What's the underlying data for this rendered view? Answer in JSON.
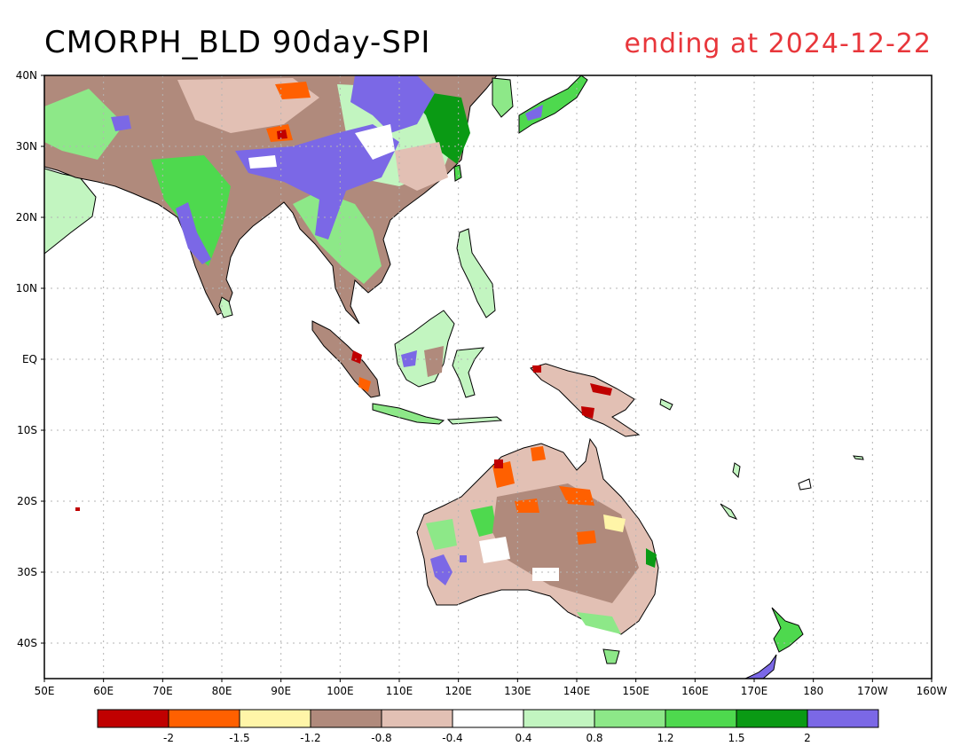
{
  "title": "CMORPH_BLD 90day-SPI",
  "subtitle": "ending at 2024-12-22",
  "map": {
    "lat_labels": [
      "40N",
      "30N",
      "20N",
      "10N",
      "EQ",
      "10S",
      "20S",
      "30S",
      "40S"
    ],
    "lon_labels": [
      "50E",
      "60E",
      "70E",
      "80E",
      "90E",
      "100E",
      "110E",
      "120E",
      "130E",
      "140E",
      "150E",
      "160E",
      "170E",
      "180",
      "170W",
      "160W"
    ]
  },
  "legend": {
    "colors": [
      "#c00000",
      "#ff6000",
      "#fff5a8",
      "#b08a7c",
      "#e2c0b4",
      "#ffffff",
      "#c2f5c0",
      "#8de888",
      "#4ed94e",
      "#0a9a14",
      "#7b68e6"
    ],
    "labels": [
      "-2",
      "-1.5",
      "-1.2",
      "-0.8",
      "-0.4",
      "0.4",
      "0.8",
      "1.2",
      "1.5",
      "2"
    ]
  },
  "colors": {
    "subtitle": "#e8363b",
    "coast": "#000000",
    "grid": "#b4b4b4"
  }
}
